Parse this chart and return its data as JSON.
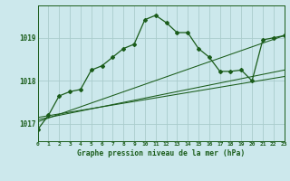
{
  "title": "Graphe pression niveau de la mer (hPa)",
  "bg_color": "#cce8ec",
  "grid_color": "#aacccc",
  "line_color": "#1a5c1a",
  "x_min": 0,
  "x_max": 23,
  "y_min": 1016.6,
  "y_max": 1019.75,
  "yticks": [
    1017,
    1018,
    1019
  ],
  "xticks": [
    0,
    1,
    2,
    3,
    4,
    5,
    6,
    7,
    8,
    9,
    10,
    11,
    12,
    13,
    14,
    15,
    16,
    17,
    18,
    19,
    20,
    21,
    22,
    23
  ],
  "main_x": [
    0,
    1,
    2,
    3,
    4,
    5,
    6,
    7,
    8,
    9,
    10,
    11,
    12,
    13,
    14,
    15,
    16,
    17,
    18,
    19,
    20,
    21,
    22,
    23
  ],
  "main_y": [
    1016.87,
    1017.2,
    1017.65,
    1017.75,
    1017.8,
    1018.25,
    1018.35,
    1018.55,
    1018.75,
    1018.85,
    1019.42,
    1019.52,
    1019.35,
    1019.12,
    1019.12,
    1018.75,
    1018.55,
    1018.22,
    1018.22,
    1018.25,
    1018.0,
    1018.95,
    1019.0,
    1019.05
  ],
  "trend1_x": [
    0,
    23
  ],
  "trend1_y": [
    1017.05,
    1019.05
  ],
  "trend2_x": [
    0,
    23
  ],
  "trend2_y": [
    1017.1,
    1018.25
  ],
  "trend3_x": [
    0,
    23
  ],
  "trend3_y": [
    1017.15,
    1018.1
  ]
}
